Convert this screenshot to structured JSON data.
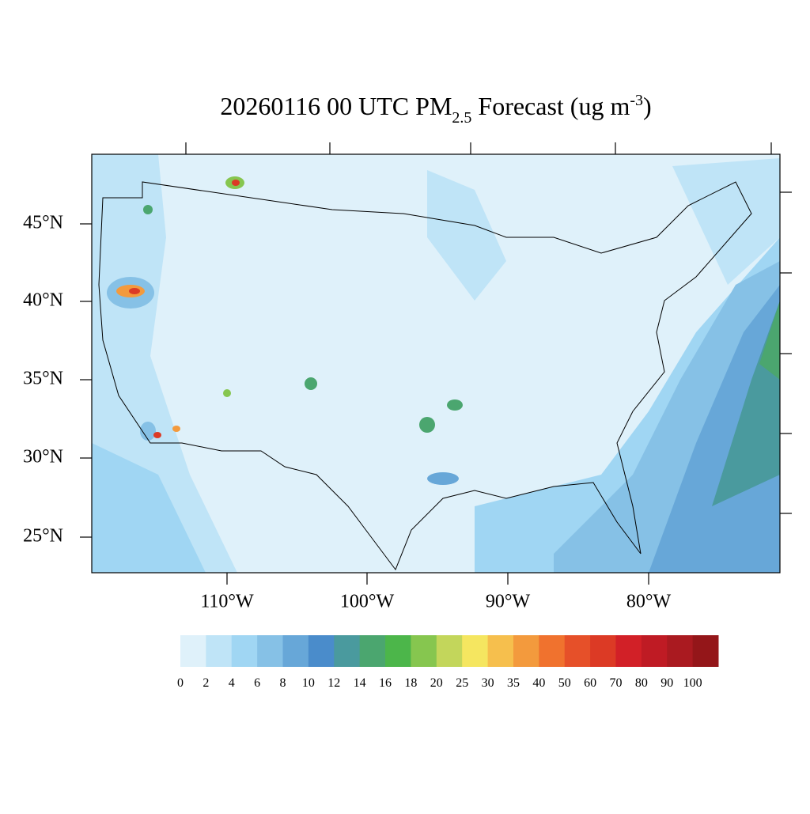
{
  "title": {
    "main": "20260116 00 UTC PM",
    "sub": "2.5",
    "rest": " Forecast (ug m",
    "sup": "-3",
    "end": ")"
  },
  "map": {
    "lat_labels": [
      "45°N",
      "40°N",
      "35°N",
      "30°N",
      "25°N"
    ],
    "lon_labels": [
      "110°W",
      "100°W",
      "90°W",
      "80°W"
    ]
  },
  "colorbar": {
    "levels": [
      0,
      2,
      4,
      6,
      8,
      10,
      12,
      14,
      16,
      18,
      20,
      25,
      30,
      35,
      40,
      50,
      60,
      70,
      80,
      90,
      100
    ],
    "colors": [
      "#dff1fa",
      "#bfe4f7",
      "#a0d6f3",
      "#86c1e6",
      "#67a7d8",
      "#4a8ccb",
      "#4a9a9e",
      "#4ba66f",
      "#4cb64a",
      "#86c64f",
      "#c3d65b",
      "#f5e660",
      "#f6bf4d",
      "#f39a3d",
      "#f0722e",
      "#e65029",
      "#dc3a25",
      "#d22027",
      "#bf1b24",
      "#aa1a20",
      "#941619"
    ]
  }
}
